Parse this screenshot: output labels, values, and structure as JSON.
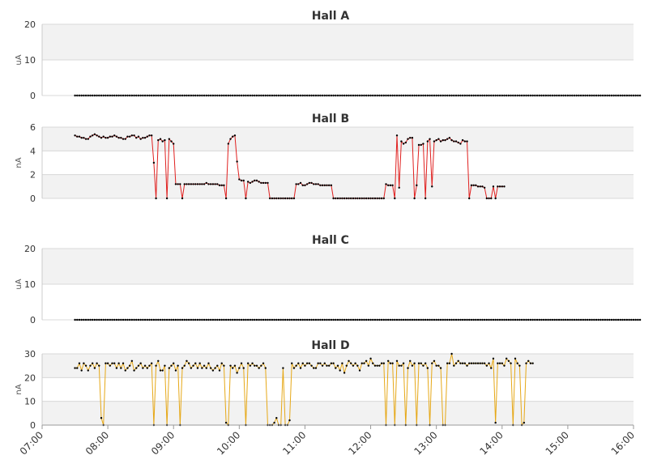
{
  "chart_data": {
    "type": "line",
    "x_ticks": [
      "07:00",
      "08:00",
      "09:00",
      "10:00",
      "11:00",
      "12:00",
      "13:00",
      "14:00",
      "15:00",
      "16:00"
    ],
    "x_range": [
      "07:00",
      "16:00"
    ],
    "sample_interval_min": 2,
    "panels": [
      {
        "title": "Hall A",
        "ylabel": "uA",
        "ylim": [
          0,
          20
        ],
        "yticks": [
          0,
          10,
          20
        ],
        "color": "#000000",
        "marker_color": "#000000",
        "series": {
          "start": "07:30",
          "interval_min": 2,
          "y": [
            0,
            0,
            0,
            0,
            0,
            0,
            0,
            0,
            0,
            0,
            0,
            0,
            0,
            0,
            0,
            0,
            0,
            0,
            0,
            0,
            0,
            0,
            0,
            0,
            0,
            0,
            0,
            0,
            0,
            0,
            0,
            0,
            0,
            0,
            0,
            0,
            0,
            0,
            0,
            0,
            0,
            0,
            0,
            0,
            0,
            0,
            0,
            0,
            0,
            0,
            0,
            0,
            0,
            0,
            0,
            0,
            0,
            0,
            0,
            0,
            0,
            0,
            0,
            0,
            0,
            0,
            0,
            0,
            0,
            0,
            0,
            0,
            0,
            0,
            0,
            0,
            0,
            0,
            0,
            0,
            0,
            0,
            0,
            0,
            0,
            0,
            0,
            0,
            0,
            0,
            0,
            0,
            0,
            0,
            0,
            0,
            0,
            0,
            0,
            0,
            0,
            0,
            0,
            0,
            0,
            0,
            0,
            0,
            0,
            0,
            0,
            0,
            0,
            0,
            0,
            0,
            0,
            0,
            0,
            0,
            0,
            0,
            0,
            0,
            0,
            0,
            0,
            0,
            0,
            0,
            0,
            0,
            0,
            0,
            0,
            0,
            0,
            0,
            0,
            0,
            0,
            0,
            0,
            0,
            0,
            0,
            0,
            0,
            0,
            0,
            0,
            0,
            0,
            0,
            0,
            0,
            0,
            0,
            0,
            0,
            0,
            0,
            0,
            0,
            0,
            0,
            0,
            0,
            0,
            0,
            0,
            0,
            0,
            0,
            0,
            0,
            0,
            0,
            0,
            0,
            0,
            0,
            0,
            0,
            0,
            0,
            0,
            0,
            0,
            0,
            0,
            0,
            0,
            0,
            0,
            0,
            0,
            0,
            0,
            0,
            0,
            0,
            0,
            0,
            0,
            0,
            0,
            0,
            0,
            0,
            0,
            0,
            0,
            0,
            0,
            0,
            0,
            0,
            0,
            0,
            0,
            0,
            0,
            0,
            0,
            0,
            0,
            0,
            0,
            0,
            0,
            0,
            0,
            0,
            0,
            0,
            0,
            0,
            0,
            0,
            0,
            0,
            0,
            0,
            0,
            0,
            0,
            0,
            0,
            0,
            0,
            0,
            0,
            0,
            0,
            0,
            0,
            0,
            0
          ]
        }
      },
      {
        "title": "Hall B",
        "ylabel": "nA",
        "ylim": [
          0,
          6
        ],
        "yticks": [
          0,
          2,
          4,
          6
        ],
        "color": "#e0201f",
        "marker_color": "#000000",
        "series": {
          "start": "07:30",
          "interval_min": 2,
          "y": [
            5.3,
            5.2,
            5.2,
            5.1,
            5.1,
            5.0,
            5.0,
            5.2,
            5.3,
            5.4,
            5.3,
            5.2,
            5.1,
            5.2,
            5.1,
            5.1,
            5.2,
            5.2,
            5.3,
            5.2,
            5.1,
            5.1,
            5.0,
            5.0,
            5.2,
            5.2,
            5.3,
            5.3,
            5.1,
            5.2,
            5.0,
            5.1,
            5.1,
            5.2,
            5.3,
            5.3,
            3.0,
            0.0,
            4.9,
            5.0,
            4.8,
            4.9,
            0.0,
            5.0,
            4.8,
            4.6,
            1.2,
            1.2,
            1.2,
            0.0,
            1.2,
            1.2,
            1.2,
            1.2,
            1.2,
            1.2,
            1.2,
            1.2,
            1.2,
            1.2,
            1.3,
            1.2,
            1.2,
            1.2,
            1.2,
            1.2,
            1.1,
            1.1,
            1.1,
            0.0,
            4.6,
            5.0,
            5.2,
            5.3,
            3.1,
            1.6,
            1.5,
            1.5,
            0.0,
            1.4,
            1.3,
            1.4,
            1.5,
            1.5,
            1.4,
            1.3,
            1.3,
            1.3,
            1.3,
            0.0,
            0.0,
            0.0,
            0.0,
            0.0,
            0.0,
            0.0,
            0.0,
            0.0,
            0.0,
            0.0,
            0.0,
            1.2,
            1.2,
            1.3,
            1.1,
            1.1,
            1.2,
            1.3,
            1.3,
            1.2,
            1.2,
            1.2,
            1.1,
            1.1,
            1.1,
            1.1,
            1.1,
            1.1,
            0.0,
            0.0,
            0.0,
            0.0,
            0.0,
            0.0,
            0.0,
            0.0,
            0.0,
            0.0,
            0.0,
            0.0,
            0.0,
            0.0,
            0.0,
            0.0,
            0.0,
            0.0,
            0.0,
            0.0,
            0.0,
            0.0,
            0.0,
            0.0,
            1.2,
            1.1,
            1.1,
            1.1,
            0.0,
            5.3,
            0.9,
            4.8,
            4.6,
            4.7,
            5.0,
            5.1,
            5.1,
            0.0,
            1.1,
            4.5,
            4.5,
            4.6,
            0.0,
            4.8,
            5.0,
            1.0,
            4.8,
            4.9,
            5.0,
            4.8,
            4.9,
            4.9,
            5.0,
            5.1,
            4.9,
            4.8,
            4.8,
            4.7,
            4.6,
            4.9,
            4.8,
            4.8,
            0.0,
            1.1,
            1.1,
            1.1,
            1.0,
            1.0,
            1.0,
            0.9,
            0.0,
            0.0,
            0.0,
            1.0,
            0.0,
            1.0,
            1.0,
            1.0,
            1.0
          ]
        }
      },
      {
        "title": "Hall C",
        "ylabel": "uA",
        "ylim": [
          0,
          20
        ],
        "yticks": [
          0,
          10,
          20
        ],
        "color": "#000000",
        "marker_color": "#000000",
        "series": {
          "start": "07:30",
          "interval_min": 2,
          "y": [
            0,
            0,
            0,
            0,
            0,
            0,
            0,
            0,
            0,
            0,
            0,
            0,
            0,
            0,
            0,
            0,
            0,
            0,
            0,
            0,
            0,
            0,
            0,
            0,
            0,
            0,
            0,
            0,
            0,
            0,
            0,
            0,
            0,
            0,
            0,
            0,
            0,
            0,
            0,
            0,
            0,
            0,
            0,
            0,
            0,
            0,
            0,
            0,
            0,
            0,
            0,
            0,
            0,
            0,
            0,
            0,
            0,
            0,
            0,
            0,
            0,
            0,
            0,
            0,
            0,
            0,
            0,
            0,
            0,
            0,
            0,
            0,
            0,
            0,
            0,
            0,
            0,
            0,
            0,
            0,
            0,
            0,
            0,
            0,
            0,
            0,
            0,
            0,
            0,
            0,
            0,
            0,
            0,
            0,
            0,
            0,
            0,
            0,
            0,
            0,
            0,
            0,
            0,
            0,
            0,
            0,
            0,
            0,
            0,
            0,
            0,
            0,
            0,
            0,
            0,
            0,
            0,
            0,
            0,
            0,
            0,
            0,
            0,
            0,
            0,
            0,
            0,
            0,
            0,
            0,
            0,
            0,
            0,
            0,
            0,
            0,
            0,
            0,
            0,
            0,
            0,
            0,
            0,
            0,
            0,
            0,
            0,
            0,
            0,
            0,
            0,
            0,
            0,
            0,
            0,
            0,
            0,
            0,
            0,
            0,
            0,
            0,
            0,
            0,
            0,
            0,
            0,
            0,
            0,
            0,
            0,
            0,
            0,
            0,
            0,
            0,
            0,
            0,
            0,
            0,
            0,
            0,
            0,
            0,
            0,
            0,
            0,
            0,
            0,
            0,
            0,
            0,
            0,
            0,
            0,
            0,
            0,
            0,
            0,
            0,
            0,
            0,
            0,
            0,
            0,
            0,
            0,
            0,
            0,
            0,
            0,
            0,
            0,
            0,
            0,
            0,
            0,
            0,
            0,
            0,
            0,
            0,
            0,
            0,
            0,
            0,
            0,
            0,
            0,
            0,
            0,
            0,
            0,
            0,
            0,
            0,
            0,
            0,
            0,
            0,
            0,
            0,
            0,
            0,
            0,
            0,
            0,
            0,
            0,
            0,
            0,
            0,
            0,
            0,
            0,
            0,
            0,
            0,
            0
          ]
        }
      },
      {
        "title": "Hall D",
        "ylabel": "nA",
        "ylim": [
          0,
          30
        ],
        "yticks": [
          0,
          10,
          20,
          30
        ],
        "color": "#e6a817",
        "marker_color": "#000000",
        "series": {
          "start": "07:30",
          "interval_min": 2,
          "y": [
            24,
            24,
            26,
            23,
            26,
            25,
            23,
            25,
            26,
            24,
            26,
            25,
            3,
            0,
            26,
            26,
            25,
            26,
            26,
            24,
            26,
            24,
            26,
            23,
            24,
            25,
            27,
            23,
            24,
            25,
            26,
            24,
            25,
            24,
            25,
            26,
            0,
            25,
            27,
            23,
            23,
            25,
            0,
            24,
            25,
            26,
            23,
            25,
            0,
            24,
            25,
            27,
            26,
            24,
            25,
            26,
            24,
            26,
            24,
            25,
            24,
            26,
            24,
            23,
            24,
            25,
            23,
            26,
            25,
            1,
            0,
            25,
            24,
            25,
            22,
            24,
            26,
            24,
            0,
            26,
            25,
            26,
            25,
            25,
            24,
            25,
            26,
            24,
            0,
            0,
            0,
            1,
            3,
            0,
            0,
            24,
            0,
            0,
            2,
            26,
            24,
            25,
            26,
            24,
            26,
            25,
            26,
            26,
            25,
            24,
            24,
            26,
            26,
            25,
            26,
            25,
            25,
            26,
            26,
            24,
            25,
            23,
            26,
            22,
            25,
            27,
            26,
            25,
            26,
            25,
            23,
            26,
            26,
            27,
            25,
            28,
            26,
            25,
            25,
            25,
            26,
            26,
            0,
            27,
            26,
            26,
            0,
            27,
            25,
            25,
            26,
            0,
            24,
            27,
            25,
            26,
            0,
            26,
            26,
            25,
            26,
            24,
            0,
            26,
            27,
            25,
            25,
            24,
            0,
            0,
            26,
            26,
            30,
            25,
            26,
            27,
            26,
            26,
            26,
            25,
            26,
            26,
            26,
            26,
            26,
            26,
            26,
            26,
            25,
            26,
            24,
            28,
            1,
            26,
            26,
            26,
            25,
            28,
            27,
            26,
            0,
            28,
            26,
            25,
            0,
            1,
            26,
            27,
            26,
            26
          ]
        }
      }
    ]
  }
}
